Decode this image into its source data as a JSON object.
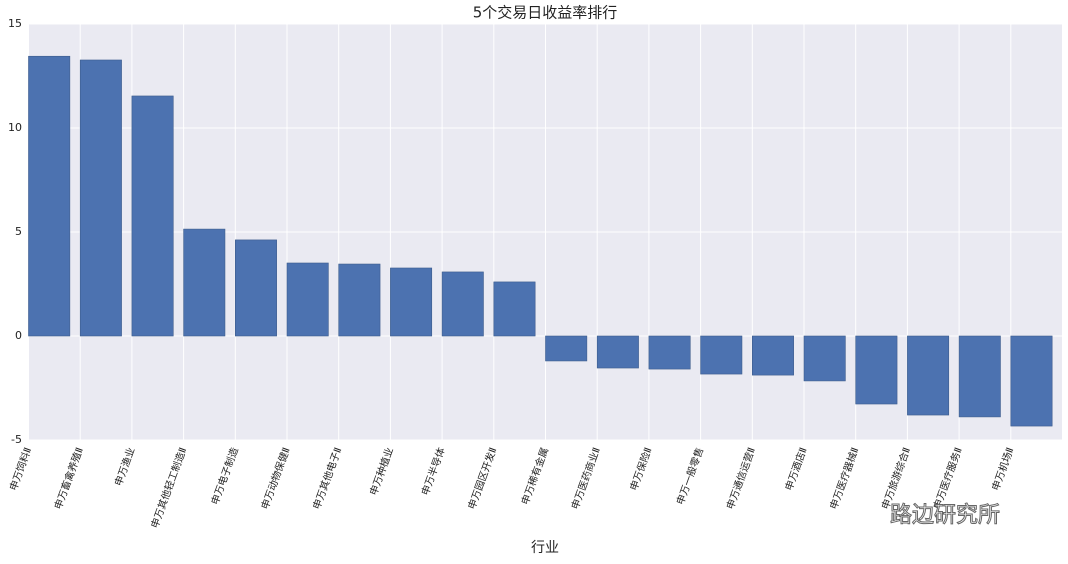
{
  "chart_data": {
    "type": "bar",
    "title": "5个交易日收益率排行",
    "x_label": "行业",
    "categories": [
      "申万饲料Ⅱ",
      "申万畜禽养殖Ⅱ",
      "申万渔业",
      "申万其他轻工制造Ⅱ",
      "申万电子制造",
      "申万动物保健Ⅱ",
      "申万其他电子Ⅱ",
      "申万种植业",
      "申万半导体",
      "申万园区开发Ⅱ",
      "申万稀有金属",
      "申万医药商业Ⅱ",
      "申万保险Ⅱ",
      "申万一般零售",
      "申万通信运营Ⅱ",
      "申万酒店Ⅱ",
      "申万医疗器械Ⅱ",
      "申万旅游综合Ⅱ",
      "申万医疗服务Ⅱ",
      "申万机场Ⅱ"
    ],
    "values": [
      13.45,
      13.27,
      11.54,
      5.14,
      4.62,
      3.51,
      3.46,
      3.27,
      3.08,
      2.6,
      -1.2,
      -1.54,
      -1.59,
      -1.83,
      -1.88,
      -2.16,
      -3.27,
      -3.8,
      -3.89,
      -4.33
    ],
    "color": "#4c72b0",
    "ylim": [
      -5,
      15
    ],
    "yticks": [
      -5,
      0,
      5,
      10,
      15
    ],
    "grid": true,
    "watermark": "路边研究所"
  }
}
